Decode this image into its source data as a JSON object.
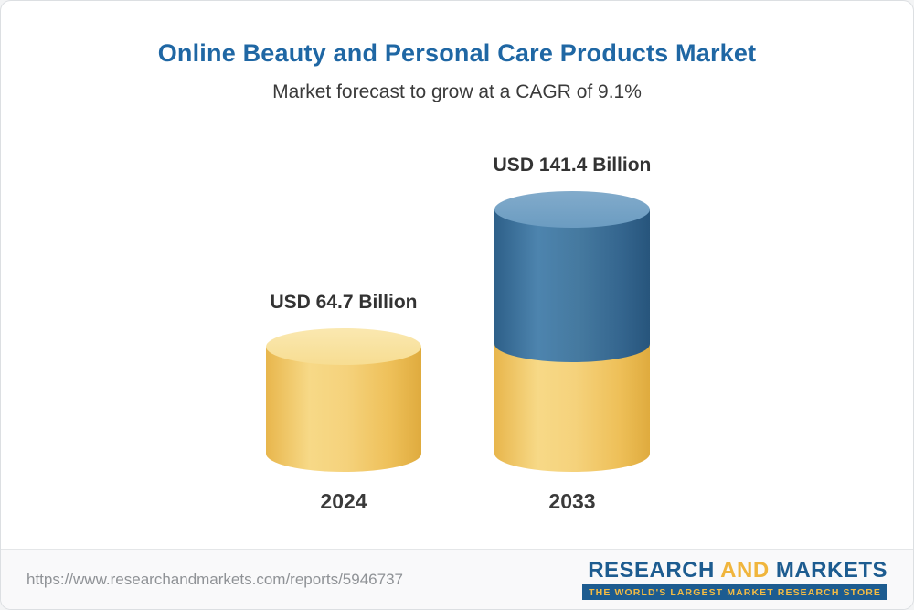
{
  "header": {
    "title": "Online Beauty and Personal Care Products Market",
    "subtitle": "Market forecast to grow at a CAGR of 9.1%"
  },
  "chart_data": {
    "type": "bar",
    "title": "Online Beauty and Personal Care Products Market",
    "subtitle": "Market forecast to grow at a CAGR of 9.1%",
    "unit": "USD Billion",
    "cagr_percent": 9.1,
    "categories": [
      "2024",
      "2033"
    ],
    "values": [
      64.7,
      141.4
    ],
    "bars": [
      {
        "year": "2024",
        "value": 64.7,
        "label": "USD 64.7 Billion",
        "segments": [
          "base"
        ]
      },
      {
        "year": "2033",
        "value": 141.4,
        "label": "USD 141.4 Billion",
        "segments": [
          "base",
          "growth"
        ]
      }
    ],
    "colors": {
      "base_body": "#F2CB6A",
      "base_top": "#F9E2A0",
      "growth_body": "#3F77A3",
      "growth_top": "#79A5C8",
      "title_text": "#1F67A4"
    },
    "legend": "none",
    "axes": "none"
  },
  "footer": {
    "url": "https://www.researchandmarkets.com/reports/5946737",
    "logo": {
      "word1": "RESEARCH",
      "word2": "AND",
      "word3": "MARKETS",
      "tagline": "THE WORLD'S LARGEST MARKET RESEARCH STORE"
    }
  }
}
